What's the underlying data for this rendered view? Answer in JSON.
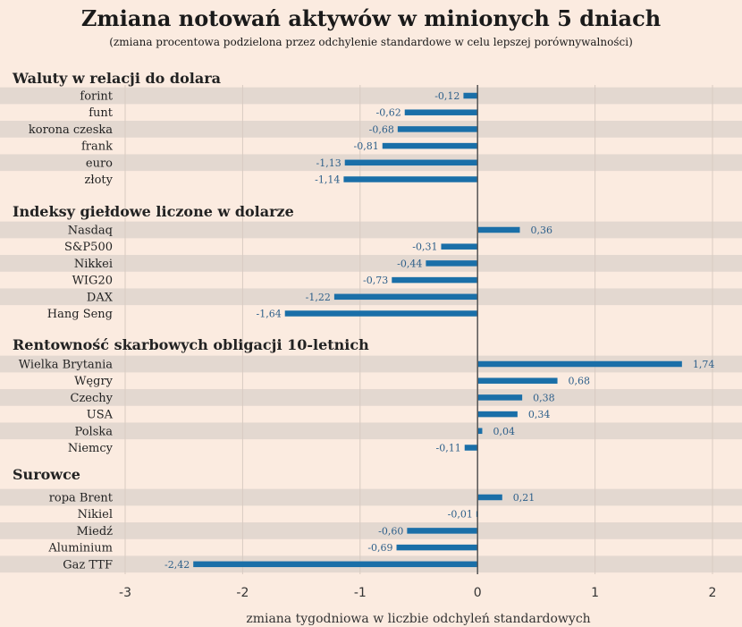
{
  "chart_data": {
    "type": "bar",
    "orientation": "horizontal",
    "title": "Zmiana notowań aktywów w minionych 5 dniach",
    "subtitle": "(zmiana procentowa podzielona przez odchylenie standardowe w celu lepszej porównywalności)",
    "xlabel": "zmiana tygodniowa w liczbie odchyleń standardowych",
    "xlim": [
      -3,
      2
    ],
    "xticks": [
      "-3",
      "-2",
      "-1",
      "0",
      "1",
      "2"
    ],
    "grid": true,
    "colors": {
      "bar": "#1a6fa8",
      "stripe": "#e3d8d0",
      "background": "#fbebe0",
      "label": "#2d5f8a"
    },
    "groups": [
      {
        "name": "Waluty w relacji do dolara",
        "items": [
          {
            "label": "forint",
            "value": -0.12,
            "display": "-0,12"
          },
          {
            "label": "funt",
            "value": -0.62,
            "display": "-0,62"
          },
          {
            "label": "korona czeska",
            "value": -0.68,
            "display": "-0,68"
          },
          {
            "label": "frank",
            "value": -0.81,
            "display": "-0,81"
          },
          {
            "label": "euro",
            "value": -1.13,
            "display": "-1,13"
          },
          {
            "label": "złoty",
            "value": -1.14,
            "display": "-1,14"
          }
        ]
      },
      {
        "name": "Indeksy giełdowe liczone w dolarze",
        "items": [
          {
            "label": "Nasdaq",
            "value": 0.36,
            "display": "0,36"
          },
          {
            "label": "S&P500",
            "value": -0.31,
            "display": "-0,31"
          },
          {
            "label": "Nikkei",
            "value": -0.44,
            "display": "-0,44"
          },
          {
            "label": "WIG20",
            "value": -0.73,
            "display": "-0,73"
          },
          {
            "label": "DAX",
            "value": -1.22,
            "display": "-1,22"
          },
          {
            "label": "Hang Seng",
            "value": -1.64,
            "display": "-1,64"
          }
        ]
      },
      {
        "name": "Rentowność skarbowych obligacji 10-letnich",
        "items": [
          {
            "label": "Wielka Brytania",
            "value": 1.74,
            "display": "1,74"
          },
          {
            "label": "Węgry",
            "value": 0.68,
            "display": "0,68"
          },
          {
            "label": "Czechy",
            "value": 0.38,
            "display": "0,38"
          },
          {
            "label": "USA",
            "value": 0.34,
            "display": "0,34"
          },
          {
            "label": "Polska",
            "value": 0.04,
            "display": "0,04"
          },
          {
            "label": "Niemcy",
            "value": -0.11,
            "display": "-0,11"
          }
        ]
      },
      {
        "name": "Surowce",
        "items": [
          {
            "label": "ropa Brent",
            "value": 0.21,
            "display": "0,21"
          },
          {
            "label": "Nikiel",
            "value": -0.01,
            "display": "-0,01"
          },
          {
            "label": "Miedź",
            "value": -0.6,
            "display": "-0,60"
          },
          {
            "label": "Aluminium",
            "value": -0.69,
            "display": "-0,69"
          },
          {
            "label": "Gaz TTF",
            "value": -2.42,
            "display": "-2,42"
          }
        ]
      }
    ]
  }
}
